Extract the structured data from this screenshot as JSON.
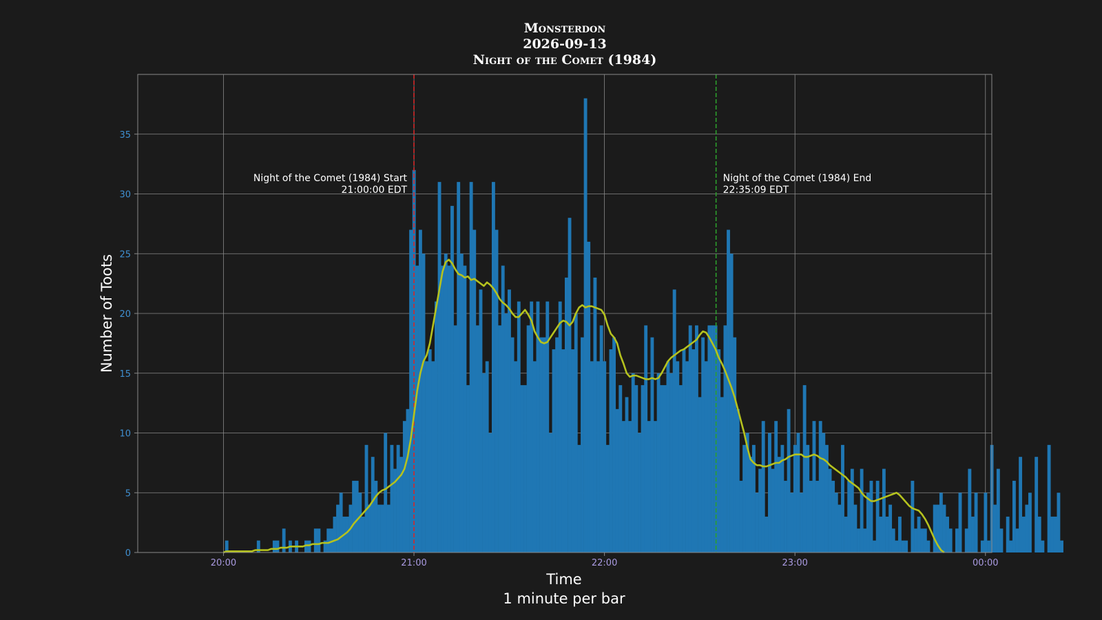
{
  "chart_data": {
    "type": "bar",
    "title": [
      "Monsterdon",
      "2026-09-13",
      "Night of the Comet (1984)"
    ],
    "xlabel": "Time",
    "xlabel2": "1 minute per bar",
    "ylabel": "Number of Toots",
    "ylim": [
      0,
      40
    ],
    "yticks": [
      0,
      5,
      10,
      15,
      20,
      25,
      30,
      35
    ],
    "x_range": [
      "19:33",
      "00:02"
    ],
    "xticks": [
      "20:00",
      "21:00",
      "22:00",
      "23:00",
      "00:00"
    ],
    "grid": true,
    "bar_color": "#1f77b4",
    "moving_average_color": "#b5c21e",
    "annotations": [
      {
        "time": "21:00",
        "color": "#d62728",
        "line1": "Night of the Comet (1984) Start",
        "line2": "21:00:00 EDT",
        "side": "left"
      },
      {
        "time": "22:35:09",
        "color": "#2ca02c",
        "line1": "Night of the Comet (1984) End",
        "line2": "22:35:09 EDT",
        "side": "right"
      }
    ],
    "series": [
      {
        "start_time": "20:01",
        "interval_minutes": 1,
        "values": [
          1,
          0,
          0,
          0,
          0,
          0,
          0,
          0,
          0,
          0,
          1,
          0,
          0,
          0,
          0,
          1,
          1,
          0,
          2,
          0,
          1,
          0,
          1,
          0,
          0,
          1,
          1,
          0,
          2,
          2,
          0,
          1,
          2,
          2,
          3,
          4,
          5,
          3,
          3,
          4,
          6,
          6,
          5,
          3,
          9,
          4,
          8,
          6,
          4,
          4,
          10,
          4,
          9,
          7,
          9,
          8,
          11,
          12,
          27,
          32,
          24,
          27,
          25,
          16,
          17,
          16,
          21,
          31,
          24,
          25,
          24,
          29,
          19,
          31,
          25,
          24,
          14,
          31,
          27,
          19,
          22,
          15,
          16,
          10,
          31,
          27,
          19,
          24,
          20,
          22,
          18,
          16,
          21,
          14,
          14,
          19,
          21,
          16,
          21,
          18,
          18,
          21,
          10,
          17,
          18,
          21,
          17,
          23,
          28,
          17,
          20,
          9,
          18,
          38,
          26,
          16,
          23,
          16,
          19,
          16,
          9,
          17,
          18,
          12,
          14,
          11,
          13,
          11,
          15,
          14,
          10,
          14,
          19,
          11,
          18,
          11,
          15,
          14,
          14,
          16,
          15,
          22,
          16,
          14,
          17,
          16,
          19,
          17,
          19,
          13,
          18,
          16,
          19,
          19,
          19,
          17,
          13,
          19,
          27,
          25,
          18,
          12,
          6,
          9,
          10,
          8,
          9,
          5,
          7,
          11,
          3,
          10,
          7,
          11,
          8,
          9,
          6,
          12,
          5,
          9,
          10,
          5,
          14,
          9,
          6,
          11,
          6,
          11,
          10,
          9,
          7,
          6,
          5,
          4,
          9,
          3,
          6,
          7,
          4,
          2,
          7,
          2,
          5,
          6,
          1,
          6,
          3,
          7,
          3,
          4,
          2,
          1,
          3,
          1,
          1,
          0,
          6,
          2,
          3,
          2,
          2,
          1,
          0,
          4,
          4,
          5,
          4,
          3,
          2,
          0,
          2,
          5,
          0,
          2,
          7,
          3,
          5,
          0,
          1,
          5,
          1,
          9,
          4,
          7,
          2,
          0,
          3,
          1,
          6,
          2,
          8,
          3,
          4,
          5,
          0,
          8,
          3,
          1,
          0,
          9,
          3,
          3,
          5,
          1
        ]
      },
      {
        "name": "",
        "x_start": "20:00",
        "points": [
          0,
          0.1,
          0.1,
          0.1,
          0.1,
          0.1,
          0.1,
          0.1,
          0.1,
          0.1,
          0.2,
          0.2,
          0.2,
          0.2,
          0.2,
          0.3,
          0.3,
          0.3,
          0.4,
          0.4,
          0.4,
          0.5,
          0.5,
          0.5,
          0.5,
          0.5,
          0.6,
          0.6,
          0.7,
          0.7,
          0.7,
          0.8,
          0.8,
          0.8,
          0.9,
          1.0,
          1.1,
          1.3,
          1.5,
          1.7,
          2.0,
          2.4,
          2.7,
          3.0,
          3.3,
          3.6,
          3.9,
          4.3,
          4.7,
          5.0,
          5.2,
          5.3,
          5.5,
          5.7,
          5.9,
          6.2,
          6.5,
          7.0,
          8.0,
          9.5,
          11.5,
          13.5,
          15.0,
          16.0,
          16.5,
          17.5,
          19.0,
          20.5,
          22.0,
          23.5,
          24.3,
          24.5,
          24.2,
          23.7,
          23.3,
          23.2,
          23.0,
          23.1,
          22.8,
          22.9,
          22.7,
          22.5,
          22.3,
          22.6,
          22.4,
          22.1,
          21.7,
          21.2,
          20.9,
          20.7,
          20.4,
          20.0,
          19.7,
          19.7,
          20.0,
          20.3,
          19.9,
          19.4,
          18.5,
          18.0,
          17.6,
          17.5,
          17.6,
          18.0,
          18.4,
          18.8,
          19.2,
          19.4,
          19.3,
          19.0,
          19.3,
          20.0,
          20.5,
          20.7,
          20.5,
          20.6,
          20.6,
          20.5,
          20.4,
          20.3,
          19.9,
          19.0,
          18.3,
          18.0,
          17.5,
          16.5,
          15.8,
          15.0,
          14.7,
          14.8,
          14.8,
          14.7,
          14.6,
          14.5,
          14.5,
          14.6,
          14.5,
          14.6,
          15.0,
          15.5,
          16.0,
          16.3,
          16.5,
          16.7,
          16.9,
          17.0,
          17.2,
          17.4,
          17.6,
          17.8,
          18.2,
          18.5,
          18.4,
          18.0,
          17.5,
          17.0,
          16.3,
          15.8,
          15.2,
          14.5,
          13.8,
          13.0,
          12.0,
          11.0,
          10.0,
          8.8,
          7.8,
          7.5,
          7.3,
          7.3,
          7.2,
          7.2,
          7.3,
          7.4,
          7.5,
          7.5,
          7.7,
          7.8,
          8.0,
          8.1,
          8.2,
          8.2,
          8.2,
          8.0,
          8.0,
          8.1,
          8.2,
          8.1,
          7.9,
          7.8,
          7.6,
          7.3,
          7.1,
          6.9,
          6.7,
          6.5,
          6.3,
          6.0,
          5.8,
          5.6,
          5.4,
          5.0,
          4.7,
          4.5,
          4.3,
          4.3,
          4.4,
          4.5,
          4.6,
          4.7,
          4.8,
          4.9,
          5.0,
          4.8,
          4.5,
          4.2,
          3.9,
          3.7,
          3.6,
          3.5,
          3.2,
          2.8,
          2.3,
          1.7,
          1.1,
          0.6,
          0.2,
          0
        ]
      }
    ]
  }
}
